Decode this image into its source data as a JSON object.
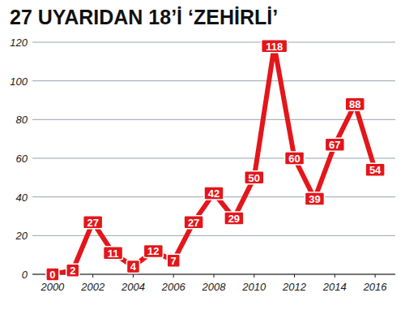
{
  "chart_data": {
    "type": "line",
    "title": "27 UYARIDAN 18’İ ‘ZEHİRLİ’",
    "x": [
      2000,
      2001,
      2002,
      2003,
      2004,
      2005,
      2006,
      2007,
      2008,
      2009,
      2010,
      2011,
      2012,
      2013,
      2014,
      2015,
      2016
    ],
    "values": [
      0,
      2,
      27,
      11,
      4,
      12,
      7,
      27,
      42,
      29,
      50,
      118,
      60,
      39,
      67,
      88,
      54
    ],
    "color": "#e3161b",
    "xlim": [
      1999,
      2017
    ],
    "xticks": [
      2000,
      2002,
      2004,
      2006,
      2008,
      2010,
      2012,
      2014,
      2016
    ],
    "ylim": [
      0,
      120
    ],
    "yticks": [
      0,
      20,
      40,
      60,
      80,
      100,
      120
    ],
    "grid": true,
    "data_labels": true,
    "marker": "none",
    "line_style": "solid"
  }
}
